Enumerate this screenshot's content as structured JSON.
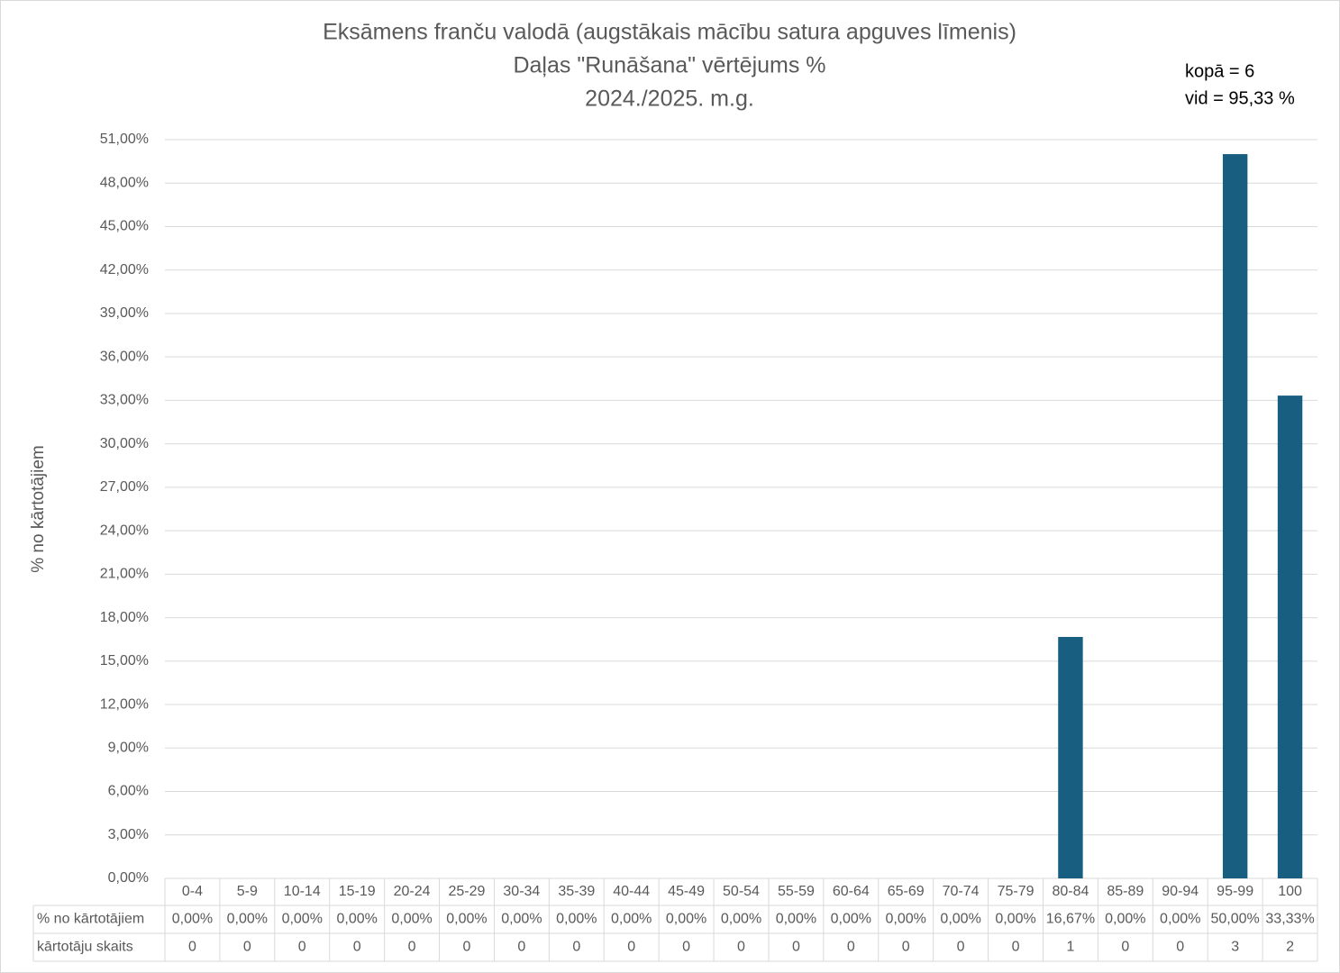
{
  "chart_data": {
    "type": "bar",
    "title": [
      "Eksāmens franču valodā (augstākais mācību satura apguves līmenis)",
      "Daļas \"Runāšana\" vērtējums %",
      "2024./2025. m.g."
    ],
    "annotations": [
      "kopā = 6",
      "vid = 95,33 %"
    ],
    "y_label": "% no kārtotājiem",
    "categories": [
      "0-4",
      "5-9",
      "10-14",
      "15-19",
      "20-24",
      "25-29",
      "30-34",
      "35-39",
      "40-44",
      "45-49",
      "50-54",
      "55-59",
      "60-64",
      "65-69",
      "70-74",
      "75-79",
      "80-84",
      "85-89",
      "90-94",
      "95-99",
      "100"
    ],
    "series": [
      {
        "name": "% no kārtotājiem",
        "color": "#175e80",
        "values": [
          0,
          0,
          0,
          0,
          0,
          0,
          0,
          0,
          0,
          0,
          0,
          0,
          0,
          0,
          0,
          0,
          16.67,
          0,
          0,
          50,
          33.33
        ],
        "value_labels": [
          "0,00%",
          "0,00%",
          "0,00%",
          "0,00%",
          "0,00%",
          "0,00%",
          "0,00%",
          "0,00%",
          "0,00%",
          "0,00%",
          "0,00%",
          "0,00%",
          "0,00%",
          "0,00%",
          "0,00%",
          "0,00%",
          "16,67%",
          "0,00%",
          "0,00%",
          "50,00%",
          "33,33%"
        ]
      }
    ],
    "table_rows": [
      {
        "name": "kārtotāju skaits",
        "values": [
          0,
          0,
          0,
          0,
          0,
          0,
          0,
          0,
          0,
          0,
          0,
          0,
          0,
          0,
          0,
          0,
          1,
          0,
          0,
          3,
          2
        ]
      }
    ],
    "ylim": [
      0,
      51
    ],
    "yticks": [
      {
        "value": 0,
        "label": "0,00%"
      },
      {
        "value": 3,
        "label": "3,00%"
      },
      {
        "value": 6,
        "label": "6,00%"
      },
      {
        "value": 9,
        "label": "9,00%"
      },
      {
        "value": 12,
        "label": "12,00%"
      },
      {
        "value": 15,
        "label": "15,00%"
      },
      {
        "value": 18,
        "label": "18,00%"
      },
      {
        "value": 21,
        "label": "21,00%"
      },
      {
        "value": 24,
        "label": "24,00%"
      },
      {
        "value": 27,
        "label": "27,00%"
      },
      {
        "value": 30,
        "label": "30,00%"
      },
      {
        "value": 33,
        "label": "33,00%"
      },
      {
        "value": 36,
        "label": "36,00%"
      },
      {
        "value": 39,
        "label": "39,00%"
      },
      {
        "value": 42,
        "label": "42,00%"
      },
      {
        "value": 45,
        "label": "45,00%"
      },
      {
        "value": 48,
        "label": "48,00%"
      },
      {
        "value": 51,
        "label": "51,00%"
      }
    ],
    "grid": true
  }
}
